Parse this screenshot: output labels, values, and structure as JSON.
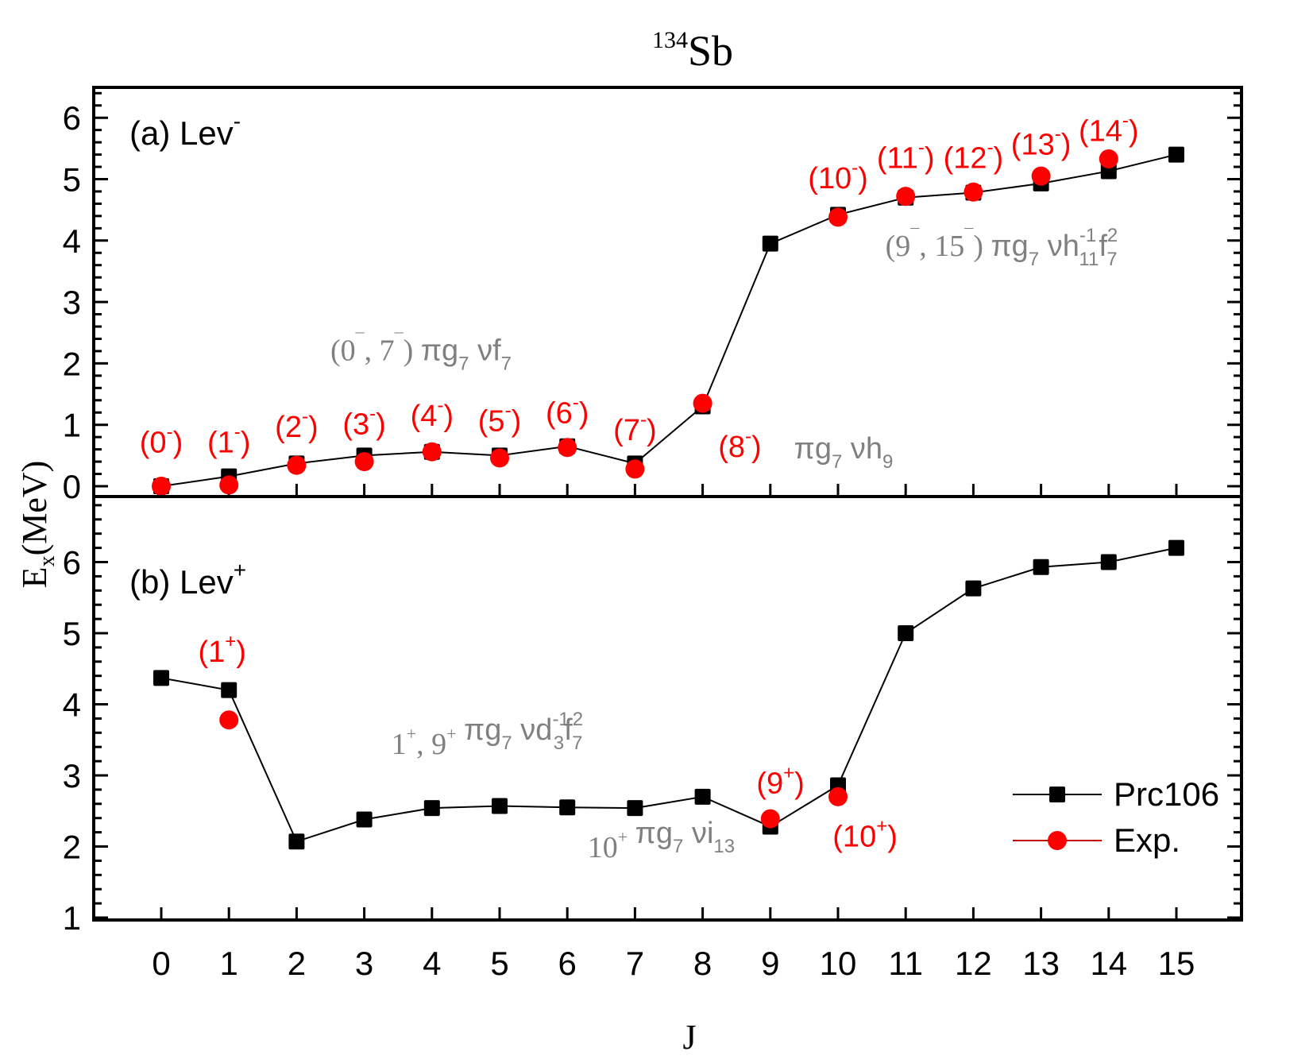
{
  "colors": {
    "theory": "#000000",
    "exp": "#ff0000",
    "annotation": "#808080",
    "frame": "#000000"
  },
  "chart_data": [
    {
      "type": "line",
      "panel": "top",
      "title": "134Sb",
      "title_mass": "134",
      "title_element": "Sb",
      "panel_label": "(a) Lev",
      "panel_label_sup": "-",
      "xlabel": "J",
      "ylabel": "E",
      "ylabel_sub": "x",
      "ylabel_unit": "(MeV)",
      "xlim": [
        -1,
        16
      ],
      "ylim": [
        -0.17,
        6.5
      ],
      "xticks": [
        "0",
        "1",
        "2",
        "3",
        "4",
        "5",
        "6",
        "7",
        "8",
        "9",
        "10",
        "11",
        "12",
        "13",
        "14",
        "15"
      ],
      "yticks": [
        "0",
        "1",
        "2",
        "3",
        "4",
        "5",
        "6"
      ],
      "series": [
        {
          "name": "Prc106",
          "marker": "square",
          "x": [
            0,
            1,
            2,
            3,
            4,
            5,
            6,
            7,
            8,
            9,
            10,
            11,
            12,
            13,
            14,
            15
          ],
          "y": [
            0.0,
            0.16,
            0.37,
            0.5,
            0.56,
            0.5,
            0.65,
            0.37,
            1.3,
            3.95,
            4.42,
            4.7,
            4.78,
            4.93,
            5.13,
            5.4
          ]
        },
        {
          "name": "Exp.",
          "marker": "circle",
          "x": [
            0,
            1,
            2,
            3,
            4,
            5,
            6,
            7,
            8,
            10,
            11,
            12,
            13,
            14
          ],
          "y": [
            0.0,
            0.02,
            0.34,
            0.4,
            0.56,
            0.46,
            0.63,
            0.28,
            1.35,
            4.38,
            4.72,
            4.79,
            5.05,
            5.33
          ]
        }
      ],
      "spin_labels": [
        {
          "text": "(0",
          "sup": "-",
          "close": ")",
          "j": 0,
          "e": 0.55
        },
        {
          "text": "(1",
          "sup": "-",
          "close": ")",
          "j": 1,
          "e": 0.55
        },
        {
          "text": "(2",
          "sup": "-",
          "close": ")",
          "j": 2,
          "e": 0.8
        },
        {
          "text": "(3",
          "sup": "-",
          "close": ")",
          "j": 3,
          "e": 0.85
        },
        {
          "text": "(4",
          "sup": "-",
          "close": ")",
          "j": 4,
          "e": 0.98
        },
        {
          "text": "(5",
          "sup": "-",
          "close": ")",
          "j": 5,
          "e": 0.9
        },
        {
          "text": "(6",
          "sup": "-",
          "close": ")",
          "j": 6,
          "e": 1.03
        },
        {
          "text": "(7",
          "sup": "-",
          "close": ")",
          "j": 7,
          "e": 0.75
        },
        {
          "text": "(8",
          "sup": "-",
          "close": ")",
          "j": 8.55,
          "e": 0.48
        },
        {
          "text": "(10",
          "sup": "-",
          "close": ")",
          "j": 10,
          "e": 4.85
        },
        {
          "text": "(11",
          "sup": "-",
          "close": ")",
          "j": 11,
          "e": 5.18
        },
        {
          "text": "(12",
          "sup": "-",
          "close": ")",
          "j": 12,
          "e": 5.18
        },
        {
          "text": "(13",
          "sup": "-",
          "close": ")",
          "j": 13,
          "e": 5.4
        },
        {
          "text": "(14",
          "sup": "-",
          "close": ")",
          "j": 14,
          "e": 5.62
        }
      ],
      "annotations": [
        {
          "id": "ann-0-7",
          "range": "(0",
          "range_sup1": "¯",
          "mid": ", 7",
          "range_sup2": "¯",
          "close": ")",
          "config": "πg",
          "sub1": "7",
          "nu": " νf",
          "sub2": "7",
          "j": 2.5,
          "e": 2.05
        },
        {
          "id": "ann-8",
          "config": "πg",
          "sub1": "7",
          "nu": " νh",
          "sub2": "9",
          "j": 9.35,
          "e": 0.45
        },
        {
          "id": "ann-9-15",
          "range": "(9",
          "range_sup1": "¯",
          "mid": ", 15",
          "range_sup2": "¯",
          "close": ")",
          "config": "πg",
          "sub1": "7",
          "nu": " νh",
          "sub2": "11",
          "sup2": "-1",
          "extra": "f",
          "sub3": "7",
          "sup3": "2",
          "j": 10.7,
          "e": 3.75
        }
      ]
    },
    {
      "type": "line",
      "panel": "bottom",
      "panel_label": "(b) Lev",
      "panel_label_sup": "+",
      "xlim": [
        -1,
        16
      ],
      "ylim": [
        0.97,
        6.93
      ],
      "xticks": [
        "0",
        "1",
        "2",
        "3",
        "4",
        "5",
        "6",
        "7",
        "8",
        "9",
        "10",
        "11",
        "12",
        "13",
        "14",
        "15"
      ],
      "yticks": [
        "1",
        "2",
        "3",
        "4",
        "5",
        "6"
      ],
      "series": [
        {
          "name": "Prc106",
          "marker": "square",
          "x": [
            0,
            1,
            2,
            3,
            4,
            5,
            6,
            7,
            8,
            9,
            10,
            11,
            12,
            13,
            14,
            15
          ],
          "y": [
            4.37,
            4.2,
            2.07,
            2.38,
            2.54,
            2.57,
            2.55,
            2.54,
            2.7,
            2.28,
            2.86,
            5.0,
            5.63,
            5.93,
            6.0,
            6.2
          ]
        },
        {
          "name": "Exp.",
          "marker": "circle",
          "x": [
            1,
            9,
            10
          ],
          "y": [
            3.78,
            2.39,
            2.7
          ]
        }
      ],
      "spin_labels": [
        {
          "text": "(1",
          "sup": "+",
          "close": ")",
          "j": 0.9,
          "e": 4.6
        },
        {
          "text": "(9",
          "sup": "+",
          "close": ")",
          "j": 9.15,
          "e": 2.75
        },
        {
          "text": "(10",
          "sup": "+",
          "close": ")",
          "j": 10.4,
          "e": 2.0
        }
      ],
      "annotations": [
        {
          "id": "ann-1-9",
          "range": "1",
          "range_sup1": "+",
          "mid": ", 9",
          "range_sup2": "+",
          "close": "",
          "config": " πg",
          "sub1": "7",
          "nu": " νd",
          "sub2": "3",
          "sup2": "-1",
          "extra": "f",
          "sub3": "7",
          "sup3": "2",
          "j": 3.4,
          "e": 3.3
        },
        {
          "id": "ann-10",
          "range": "10",
          "range_sup1": "+",
          "mid": "",
          "range_sup2": "",
          "close": "",
          "config": " πg",
          "sub1": "7",
          "nu": " νi",
          "sub2": "13",
          "j": 6.3,
          "e": 1.85
        }
      ],
      "legend": {
        "placement": "bottom-right",
        "entries": [
          {
            "label": "Prc106",
            "marker": "square"
          },
          {
            "label": "Exp.",
            "marker": "circle"
          }
        ]
      }
    }
  ]
}
